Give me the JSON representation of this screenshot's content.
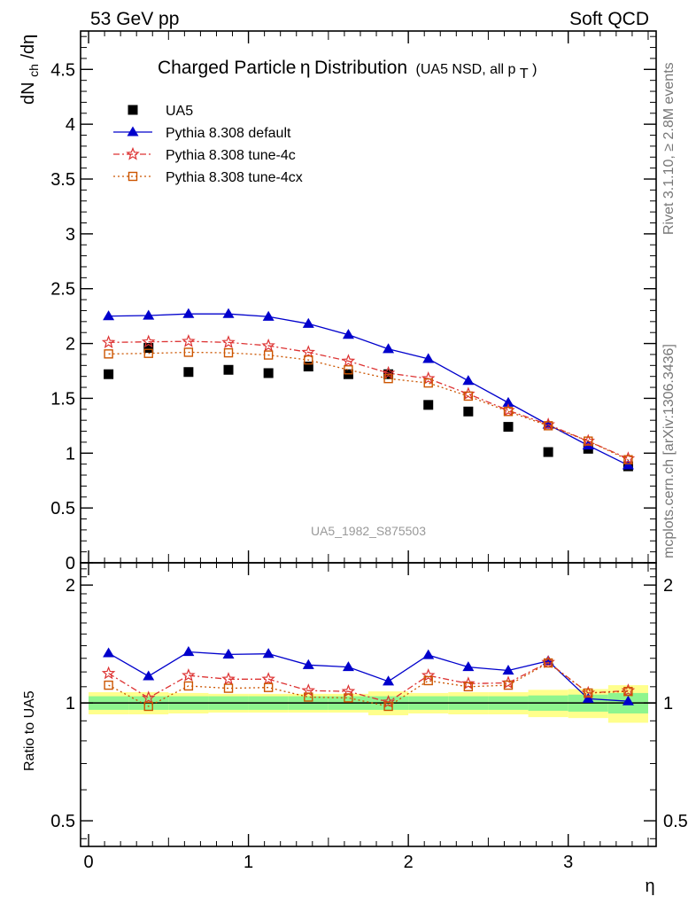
{
  "page": {
    "header_left": "53 GeV pp",
    "header_right": "Soft QCD",
    "rivet_note": "Rivet 3.1.10, ≥ 2.8M events",
    "mcplots_note": "mcplots.cern.ch [arXiv:1306.3436]",
    "analysis_tag": "UA5_1982_S875503"
  },
  "chart_data": {
    "type": "line",
    "title": {
      "main": "Charged Particle",
      "symbol": "η",
      "suffix": " Distribution",
      "note_prefix": "(UA5 NSD, all p",
      "note_sub": "T",
      "note_suffix": ")"
    },
    "xlabel": "η",
    "xlim": [
      -0.05,
      3.55
    ],
    "xticks": [
      0,
      1,
      2,
      3
    ],
    "main": {
      "ylabel": {
        "d1": "dN",
        "sub": "ch",
        "d2": "/dη"
      },
      "ylim": [
        0,
        4.85
      ],
      "yticks": [
        0,
        0.5,
        1,
        1.5,
        2,
        2.5,
        3,
        3.5,
        4,
        4.5
      ],
      "ytick_labels": [
        "0",
        "0.5",
        "1",
        "1.5",
        "2",
        "2.5",
        "3",
        "3.5",
        "4",
        "4.5"
      ],
      "x": [
        0.125,
        0.375,
        0.625,
        0.875,
        1.125,
        1.375,
        1.625,
        1.875,
        2.125,
        2.375,
        2.625,
        2.875,
        3.125,
        3.375
      ],
      "series": [
        {
          "name": "UA5",
          "marker": "square-filled",
          "color": "#000000",
          "line": "none",
          "values": [
            1.72,
            1.96,
            1.74,
            1.76,
            1.73,
            1.79,
            1.72,
            1.72,
            1.44,
            1.38,
            1.24,
            1.01,
            1.04,
            0.88
          ]
        },
        {
          "name": "Pythia 8.308 default",
          "marker": "triangle-filled",
          "color": "#0000cc",
          "line": "solid",
          "values": [
            2.25,
            2.255,
            2.27,
            2.27,
            2.245,
            2.18,
            2.08,
            1.95,
            1.86,
            1.66,
            1.46,
            1.26,
            1.07,
            0.89
          ]
        },
        {
          "name": "Pythia 8.308 tune-4c",
          "marker": "star-open",
          "color": "#dd3333",
          "line": "dashdot",
          "values": [
            2.01,
            2.015,
            2.02,
            2.01,
            1.98,
            1.92,
            1.84,
            1.73,
            1.68,
            1.54,
            1.39,
            1.26,
            1.11,
            0.95
          ]
        },
        {
          "name": "Pythia 8.308 tune-4cx",
          "marker": "square-open",
          "color": "#cc5500",
          "line": "dotted",
          "values": [
            1.905,
            1.91,
            1.92,
            1.915,
            1.895,
            1.85,
            1.76,
            1.68,
            1.64,
            1.52,
            1.38,
            1.25,
            1.11,
            0.94
          ]
        }
      ]
    },
    "ratio": {
      "ylabel": "Ratio to UA5",
      "scale": "log",
      "ylim": [
        0.43,
        2.28
      ],
      "yticks": [
        0.5,
        1,
        2
      ],
      "ytick_labels": [
        "0.5",
        "1",
        "2"
      ],
      "reference_line": 1,
      "bands": {
        "inner_color": "#8ef58e",
        "outer_color": "#ffff8c",
        "inner_halfwidth": [
          0.04,
          0.04,
          0.04,
          0.04,
          0.04,
          0.04,
          0.04,
          0.04,
          0.04,
          0.04,
          0.04,
          0.045,
          0.05,
          0.06
        ],
        "outer_halfwidth": [
          0.065,
          0.065,
          0.06,
          0.055,
          0.055,
          0.055,
          0.055,
          0.07,
          0.06,
          0.065,
          0.065,
          0.08,
          0.085,
          0.11
        ]
      },
      "series": [
        {
          "name": "Pythia 8.308 default",
          "values": [
            1.34,
            1.17,
            1.35,
            1.33,
            1.335,
            1.25,
            1.235,
            1.135,
            1.325,
            1.235,
            1.21,
            1.28,
            1.025,
            1.01
          ]
        },
        {
          "name": "Pythia 8.308 tune-4c",
          "values": [
            1.19,
            1.03,
            1.175,
            1.15,
            1.15,
            1.075,
            1.07,
            1.005,
            1.175,
            1.12,
            1.125,
            1.27,
            1.06,
            1.075
          ]
        },
        {
          "name": "Pythia 8.308 tune-4cx",
          "values": [
            1.11,
            0.98,
            1.105,
            1.09,
            1.095,
            1.035,
            1.03,
            0.98,
            1.14,
            1.1,
            1.11,
            1.265,
            1.06,
            1.07
          ]
        }
      ]
    }
  }
}
